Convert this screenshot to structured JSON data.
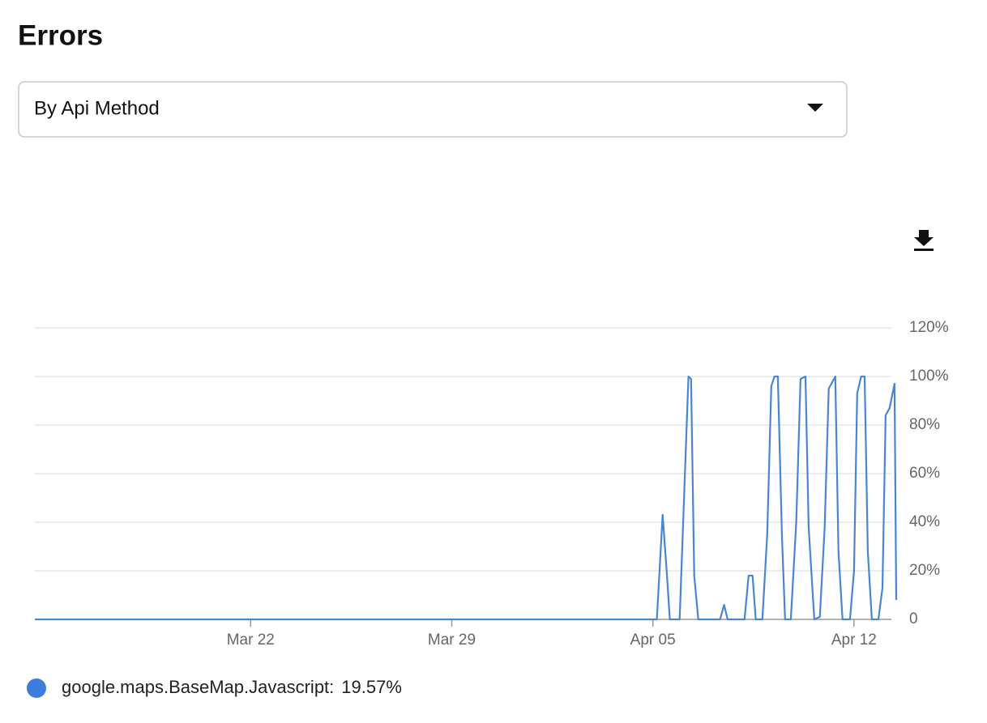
{
  "header": {
    "title": "Errors"
  },
  "dropdown": {
    "selected": "By Api Method"
  },
  "chart_data": {
    "type": "line",
    "x": [
      14.49,
      36.14,
      36.34,
      36.48,
      36.59,
      36.93,
      37.24,
      37.33,
      37.44,
      37.58,
      38.34,
      38.48,
      38.6,
      39.19,
      39.33,
      39.47,
      39.58,
      39.81,
      39.98,
      40.12,
      40.23,
      40.35,
      40.49,
      40.6,
      40.8,
      40.99,
      41.14,
      41.31,
      41.42,
      41.62,
      41.81,
      41.98,
      42.12,
      42.35,
      42.46,
      42.6,
      42.86,
      43.0,
      43.11,
      43.25,
      43.37,
      43.48,
      43.62,
      43.85,
      43.99,
      44.1,
      44.24,
      44.41,
      44.47
    ],
    "series": [
      {
        "name": "google.maps.BaseMap.Javascript:",
        "color": "#4a86d0",
        "legend_color": "#3b7ddd",
        "values": [
          0,
          0,
          43,
          20,
          0,
          0,
          100,
          99,
          18,
          0,
          0,
          6,
          0,
          0,
          18,
          18,
          0,
          0,
          35,
          96,
          100,
          100,
          35,
          0,
          0,
          40,
          99,
          100,
          38,
          0,
          1,
          38,
          95,
          100,
          28,
          0,
          0,
          20,
          93,
          100,
          100,
          28,
          0,
          0,
          13,
          84,
          87,
          97,
          8
        ],
        "summary": 19.57,
        "summary_label": "19.57%"
      }
    ],
    "xlim": [
      14.49,
      44.47
    ],
    "xticks": [
      {
        "value": 22,
        "label": "Mar 22"
      },
      {
        "value": 29,
        "label": "Mar 29"
      },
      {
        "value": 36,
        "label": "Apr 05"
      },
      {
        "value": 43,
        "label": "Apr 12"
      }
    ],
    "ylim": [
      0,
      120
    ],
    "yticks": [
      0,
      {
        "value": 20,
        "label": "20%"
      },
      {
        "value": 40,
        "label": "40%"
      },
      {
        "value": 60,
        "label": "60%"
      },
      {
        "value": 80,
        "label": "80%"
      },
      {
        "value": 100,
        "label": "100%"
      },
      {
        "value": 120,
        "label": "120%"
      }
    ],
    "grid": true
  }
}
